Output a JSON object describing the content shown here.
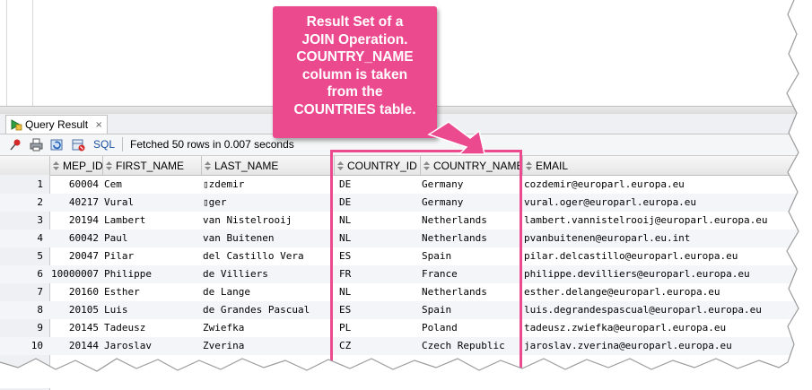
{
  "tab": {
    "label": "Query Result",
    "close": "×"
  },
  "toolbar": {
    "sql_label": "SQL",
    "status": "Fetched 50 rows in 0.007 seconds",
    "icons": [
      "pin-icon",
      "print-icon",
      "refresh-icon",
      "freeze-icon"
    ]
  },
  "columns": [
    "MEP_ID",
    "FIRST_NAME",
    "LAST_NAME",
    "COUNTRY_ID",
    "COUNTRY_NAME",
    "EMAIL"
  ],
  "rows": [
    {
      "n": "1",
      "mep_id": "60004",
      "first": "Cem",
      "last": "▯zdemir",
      "cid": "DE",
      "cname": "Germany",
      "email": "cozdemir@europarl.europa.eu"
    },
    {
      "n": "2",
      "mep_id": "40217",
      "first": "Vural",
      "last": "▯ger",
      "cid": "DE",
      "cname": "Germany",
      "email": "vural.oger@europarl.europa.eu"
    },
    {
      "n": "3",
      "mep_id": "20194",
      "first": "Lambert",
      "last": "van Nistelrooij",
      "cid": "NL",
      "cname": "Netherlands",
      "email": "lambert.vannistelrooij@europarl.europa.eu"
    },
    {
      "n": "4",
      "mep_id": "60042",
      "first": "Paul",
      "last": "van Buitenen",
      "cid": "NL",
      "cname": "Netherlands",
      "email": "pvanbuitenen@europarl.eu.int"
    },
    {
      "n": "5",
      "mep_id": "20047",
      "first": "Pilar",
      "last": "del Castillo Vera",
      "cid": "ES",
      "cname": "Spain",
      "email": "pilar.delcastillo@europarl.europa.eu"
    },
    {
      "n": "6",
      "mep_id": "10000007",
      "first": "Philippe",
      "last": "de Villiers",
      "cid": "FR",
      "cname": "France",
      "email": "philippe.devilliers@europarl.europa.eu"
    },
    {
      "n": "7",
      "mep_id": "20160",
      "first": "Esther",
      "last": "de Lange",
      "cid": "NL",
      "cname": "Netherlands",
      "email": "esther.delange@europarl.europa.eu"
    },
    {
      "n": "8",
      "mep_id": "20105",
      "first": "Luis",
      "last": "de Grandes Pascual",
      "cid": "ES",
      "cname": "Spain",
      "email": "luis.degrandespascual@europarl.europa.eu"
    },
    {
      "n": "9",
      "mep_id": "20145",
      "first": "Tadeusz",
      "last": "Zwiefka",
      "cid": "PL",
      "cname": "Poland",
      "email": "tadeusz.zwiefka@europarl.europa.eu"
    },
    {
      "n": "10",
      "mep_id": "20144",
      "first": "Jaroslav",
      "last": "Zverina",
      "cid": "CZ",
      "cname": "Czech Republic",
      "email": "jaroslav.zverina@europarl.europa.eu"
    }
  ],
  "callout": {
    "lines": [
      "Result Set of a",
      "JOIN Operation.",
      "COUNTRY_NAME",
      "column is taken",
      "from the",
      "COUNTRIES table."
    ],
    "color": "#ec4a8f"
  },
  "colors": {
    "link": "#1a4fa0",
    "accent": "#ec4a8f"
  }
}
